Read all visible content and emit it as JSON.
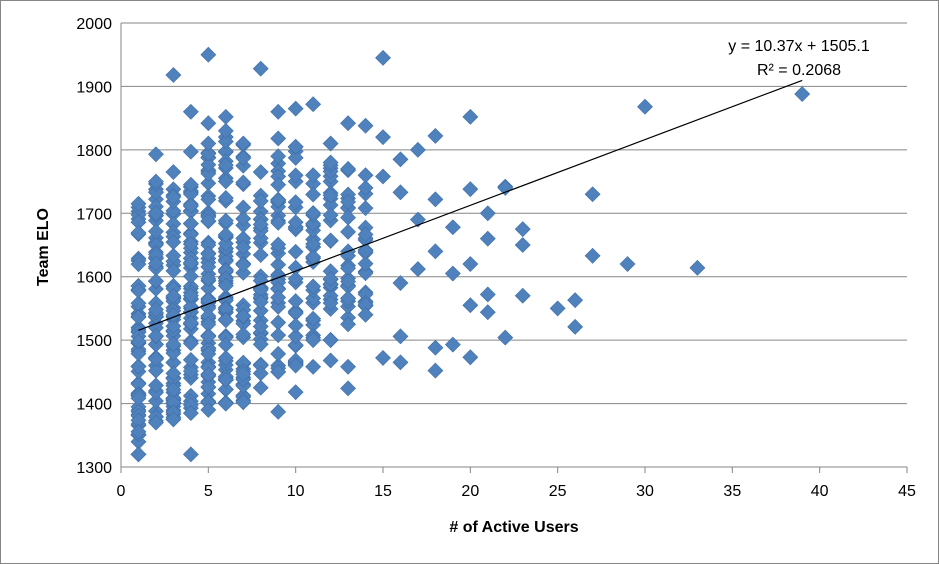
{
  "chart_data": {
    "type": "scatter",
    "title": "",
    "xlabel": "# of Active Users",
    "ylabel": "Team ELO",
    "xlim": [
      0,
      45
    ],
    "ylim": [
      1300,
      2000
    ],
    "x_ticks": [
      0,
      5,
      10,
      15,
      20,
      25,
      30,
      35,
      40,
      45
    ],
    "y_ticks": [
      1300,
      1400,
      1500,
      1600,
      1700,
      1800,
      1900,
      2000
    ],
    "grid": "horizontal major gridlines",
    "marker": "diamond",
    "marker_color": "#4f81bd",
    "trendline": {
      "type": "linear",
      "slope": 10.37,
      "intercept": 1505.1,
      "x_range": [
        1,
        39
      ],
      "equation_label": "y = 10.37x + 1505.1",
      "r2_label": "R² = 0.2068",
      "color": "#000000"
    },
    "notable_points": [
      {
        "x": 3,
        "y": 1918
      },
      {
        "x": 5,
        "y": 1950
      },
      {
        "x": 8,
        "y": 1928
      },
      {
        "x": 15,
        "y": 1945
      },
      {
        "x": 4,
        "y": 1860
      },
      {
        "x": 9,
        "y": 1860
      },
      {
        "x": 10,
        "y": 1865
      },
      {
        "x": 11,
        "y": 1872
      },
      {
        "x": 20,
        "y": 1852
      },
      {
        "x": 30,
        "y": 1868
      },
      {
        "x": 39,
        "y": 1888
      },
      {
        "x": 18,
        "y": 1822
      },
      {
        "x": 13,
        "y": 1842
      },
      {
        "x": 27,
        "y": 1730
      },
      {
        "x": 22,
        "y": 1742
      },
      {
        "x": 21,
        "y": 1700
      },
      {
        "x": 23,
        "y": 1675
      },
      {
        "x": 23,
        "y": 1650
      },
      {
        "x": 21,
        "y": 1660
      },
      {
        "x": 27,
        "y": 1633
      },
      {
        "x": 29,
        "y": 1620
      },
      {
        "x": 33,
        "y": 1614
      },
      {
        "x": 26,
        "y": 1563
      },
      {
        "x": 25,
        "y": 1550
      },
      {
        "x": 26,
        "y": 1521
      },
      {
        "x": 23,
        "y": 1570
      },
      {
        "x": 22,
        "y": 1504
      },
      {
        "x": 21,
        "y": 1572
      },
      {
        "x": 21,
        "y": 1544
      },
      {
        "x": 20,
        "y": 1620
      },
      {
        "x": 20,
        "y": 1555
      },
      {
        "x": 20,
        "y": 1473
      },
      {
        "x": 19,
        "y": 1493
      },
      {
        "x": 19,
        "y": 1605
      },
      {
        "x": 18,
        "y": 1452
      },
      {
        "x": 18,
        "y": 1488
      },
      {
        "x": 18,
        "y": 1640
      },
      {
        "x": 18,
        "y": 1722
      },
      {
        "x": 17,
        "y": 1800
      },
      {
        "x": 17,
        "y": 1690
      },
      {
        "x": 16,
        "y": 1785
      },
      {
        "x": 16,
        "y": 1465
      },
      {
        "x": 16,
        "y": 1506
      },
      {
        "x": 15,
        "y": 1472
      },
      {
        "x": 15,
        "y": 1820
      },
      {
        "x": 14,
        "y": 1838
      },
      {
        "x": 13,
        "y": 1424
      },
      {
        "x": 13,
        "y": 1458
      },
      {
        "x": 12,
        "y": 1468
      },
      {
        "x": 11,
        "y": 1458
      },
      {
        "x": 10,
        "y": 1418
      },
      {
        "x": 9,
        "y": 1387
      },
      {
        "x": 7,
        "y": 1402
      },
      {
        "x": 4,
        "y": 1320
      },
      {
        "x": 1,
        "y": 1320
      },
      {
        "x": 2,
        "y": 1793
      },
      {
        "x": 4,
        "y": 1797
      },
      {
        "x": 5,
        "y": 1842
      },
      {
        "x": 6,
        "y": 1852
      },
      {
        "x": 9,
        "y": 1818
      },
      {
        "x": 12,
        "y": 1810
      },
      {
        "x": 14,
        "y": 1760
      },
      {
        "x": 15,
        "y": 1758
      },
      {
        "x": 16,
        "y": 1733
      },
      {
        "x": 19,
        "y": 1678
      },
      {
        "x": 20,
        "y": 1738
      },
      {
        "x": 17,
        "y": 1612
      },
      {
        "x": 16,
        "y": 1590
      },
      {
        "x": 22,
        "y": 1740
      }
    ],
    "dense_cluster": {
      "note": "dense overlapping markers for x = 1..14 spanning the ranges below",
      "columns": [
        {
          "x": 1,
          "y_min": 1320,
          "y_max": 1715
        },
        {
          "x": 2,
          "y_min": 1370,
          "y_max": 1750
        },
        {
          "x": 3,
          "y_min": 1375,
          "y_max": 1765
        },
        {
          "x": 4,
          "y_min": 1385,
          "y_max": 1745
        },
        {
          "x": 5,
          "y_min": 1390,
          "y_max": 1810
        },
        {
          "x": 6,
          "y_min": 1400,
          "y_max": 1830
        },
        {
          "x": 7,
          "y_min": 1405,
          "y_max": 1810
        },
        {
          "x": 8,
          "y_min": 1425,
          "y_max": 1765
        },
        {
          "x": 9,
          "y_min": 1450,
          "y_max": 1790
        },
        {
          "x": 10,
          "y_min": 1460,
          "y_max": 1805
        },
        {
          "x": 11,
          "y_min": 1500,
          "y_max": 1760
        },
        {
          "x": 12,
          "y_min": 1500,
          "y_max": 1780
        },
        {
          "x": 13,
          "y_min": 1525,
          "y_max": 1770
        },
        {
          "x": 14,
          "y_min": 1540,
          "y_max": 1740
        }
      ]
    }
  }
}
